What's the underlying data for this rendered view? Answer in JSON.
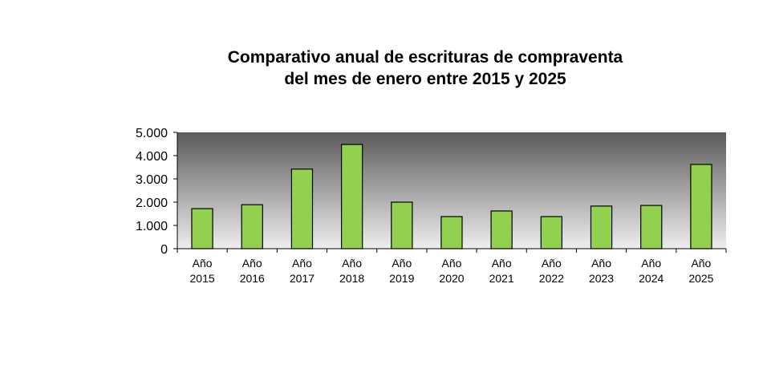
{
  "chart_data": {
    "type": "bar",
    "title_line1": "Comparativo anual de escrituras de compraventa",
    "title_line2": "del mes de enero entre 2015 y 2025",
    "xlabel": "",
    "ylabel": "",
    "ylim": [
      0,
      5000
    ],
    "yticks": [
      0,
      1000,
      2000,
      3000,
      4000,
      5000
    ],
    "ytick_labels": [
      "0",
      "1.000",
      "2.000",
      "3.000",
      "4.000",
      "5.000"
    ],
    "categories": [
      [
        "Año",
        "2015"
      ],
      [
        "Año",
        "2016"
      ],
      [
        "Año",
        "2017"
      ],
      [
        "Año",
        "2018"
      ],
      [
        "Año",
        "2019"
      ],
      [
        "Año",
        "2020"
      ],
      [
        "Año",
        "2021"
      ],
      [
        "Año",
        "2022"
      ],
      [
        "Año",
        "2023"
      ],
      [
        "Año",
        "2024"
      ],
      [
        "Año",
        "2025"
      ]
    ],
    "values": [
      1720,
      1890,
      3420,
      4480,
      2000,
      1380,
      1620,
      1380,
      1830,
      1860,
      3620
    ],
    "bar_color": "#92d050",
    "legend": "none",
    "grid": false
  }
}
